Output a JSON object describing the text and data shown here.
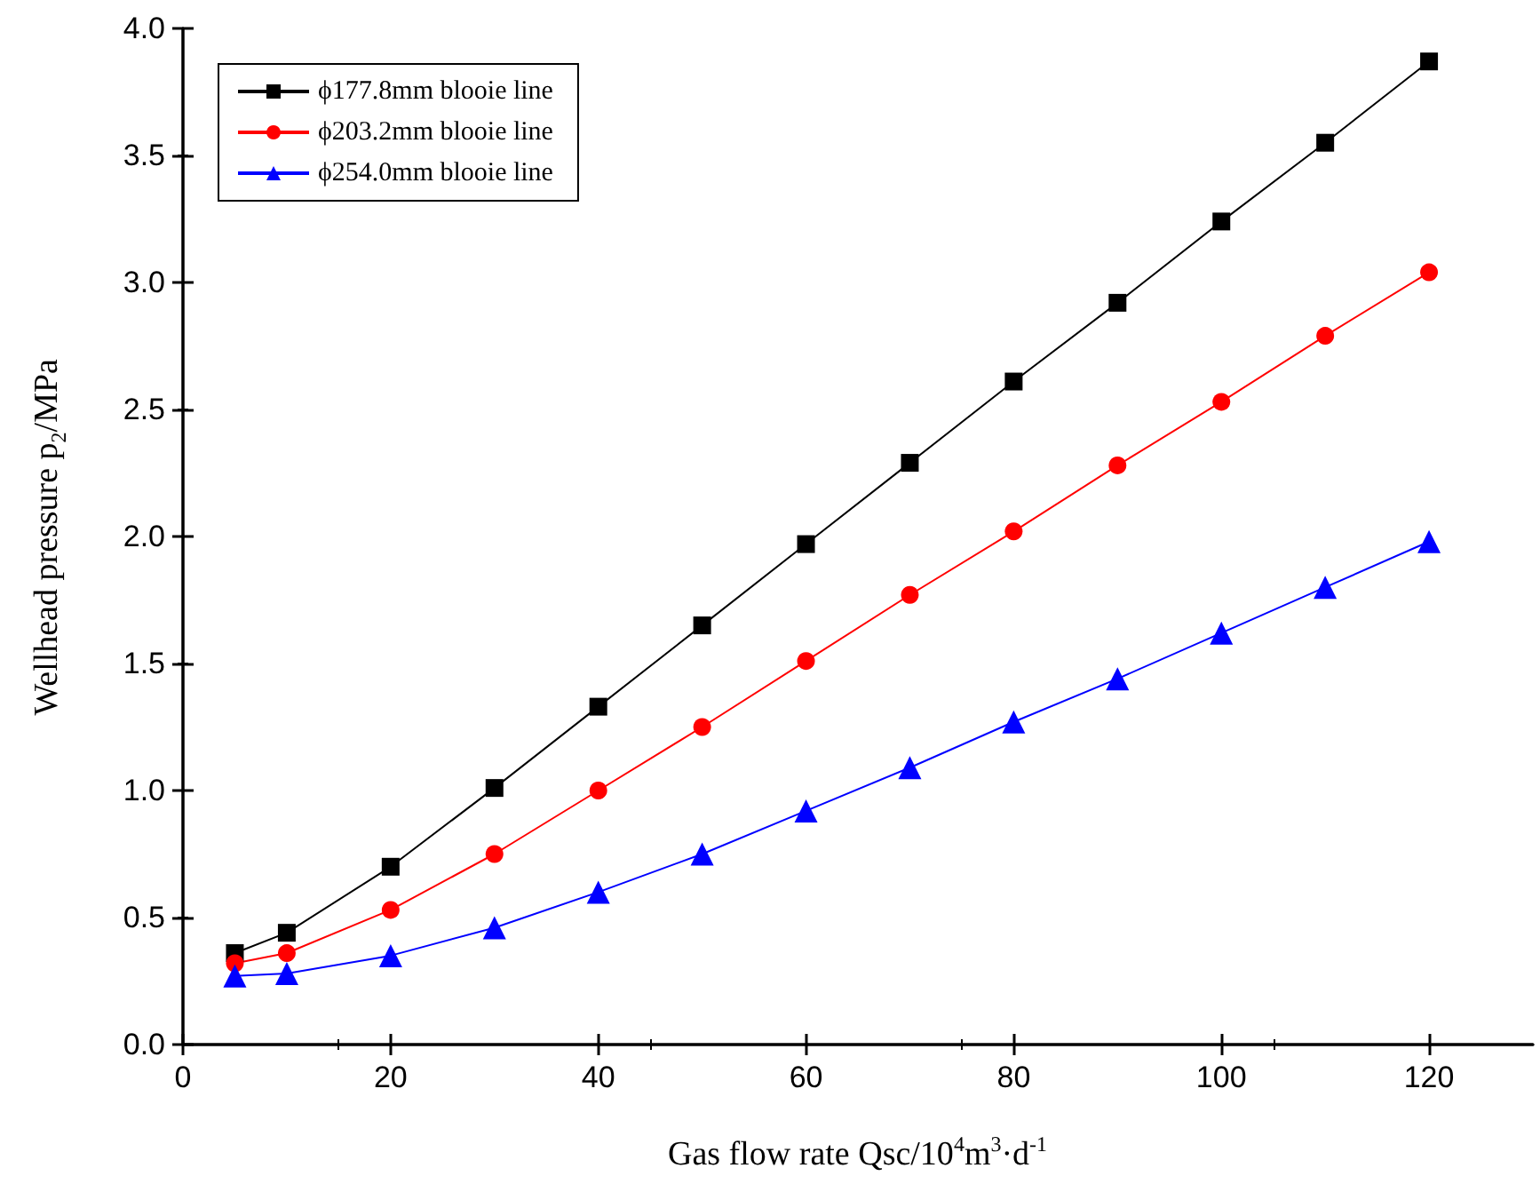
{
  "chart_data": {
    "type": "line",
    "xlabel": "Gas flow rate Qsc/10$^{4}$m$^{3}$·d$^{-1}$",
    "ylabel": "Wellhead pressure p$_{2}$/MPa",
    "x": [
      5,
      10,
      20,
      30,
      40,
      50,
      60,
      70,
      80,
      90,
      100,
      110,
      120
    ],
    "series": [
      {
        "name": "ϕ177.8mm blooie line",
        "color": "#000000",
        "marker": "square",
        "values": [
          0.36,
          0.44,
          0.7,
          1.01,
          1.33,
          1.65,
          1.97,
          2.29,
          2.61,
          2.92,
          3.24,
          3.55,
          3.87
        ]
      },
      {
        "name": "ϕ203.2mm blooie line",
        "color": "#ff0000",
        "marker": "circle",
        "values": [
          0.32,
          0.36,
          0.53,
          0.75,
          1.0,
          1.25,
          1.51,
          1.77,
          2.02,
          2.28,
          2.53,
          2.79,
          3.04
        ]
      },
      {
        "name": "ϕ254.0mm blooie line",
        "color": "#0000ff",
        "marker": "triangle",
        "values": [
          0.27,
          0.28,
          0.35,
          0.46,
          0.6,
          0.75,
          0.92,
          1.09,
          1.27,
          1.44,
          1.62,
          1.8,
          1.98
        ]
      }
    ],
    "xlim": [
      0,
      130
    ],
    "xticks": [
      0,
      20,
      40,
      60,
      80,
      100,
      120
    ],
    "ylim": [
      0,
      4.0
    ],
    "yticks": [
      {
        "value": 0,
        "label": "0.0"
      },
      {
        "value": 0.5,
        "label": "0.5"
      },
      {
        "value": 1,
        "label": "1.0"
      },
      {
        "value": 1.5,
        "label": "1.5"
      },
      {
        "value": 2,
        "label": "2.0"
      },
      {
        "value": 2.5,
        "label": "2.5"
      },
      {
        "value": 3,
        "label": "3.0"
      },
      {
        "value": 3.5,
        "label": "3.5"
      },
      {
        "value": 4,
        "label": "4.0"
      }
    ],
    "grid": false,
    "legend": "top left",
    "line_style": "solid"
  }
}
